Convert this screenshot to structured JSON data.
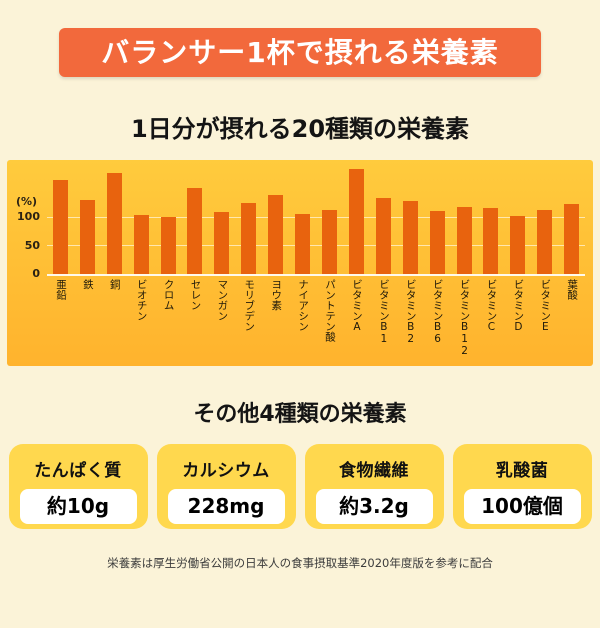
{
  "banner": {
    "title": "バランサー1杯で摂れる栄養素"
  },
  "main_chart": {
    "heading": "1日分が摂れる20種類の栄養素"
  },
  "chart_data": {
    "type": "bar",
    "title": "1日分が摂れる20種類の栄養素",
    "unit_label": "(%)",
    "ylabel": "%",
    "yticks": [
      "100",
      "50",
      "0"
    ],
    "ylim": [
      0,
      200
    ],
    "grid": "horizontal lines at 0, 50, 100",
    "legend": "none",
    "bar_color": "#E8630E",
    "plot_background": "#FFC437",
    "categories": [
      "亜鉛",
      "鉄",
      "銅",
      "ビオチン",
      "クロム",
      "セレン",
      "マンガン",
      "モリブデン",
      "ヨウ素",
      "ナイアシン",
      "パントテン酸",
      "ビタミンA",
      "ビタミンB1",
      "ビタミンB2",
      "ビタミンB6",
      "ビタミンB12",
      "ビタミンC",
      "ビタミンD",
      "ビタミンE",
      "葉酸"
    ],
    "values": [
      165,
      130,
      178,
      103,
      100,
      150,
      108,
      125,
      138,
      105,
      113,
      185,
      133,
      128,
      110,
      118,
      115,
      102,
      112,
      123
    ]
  },
  "other_nutrients": {
    "heading": "その他4種類の栄養素",
    "cards": [
      {
        "label": "たんぱく質",
        "value": "約10g"
      },
      {
        "label": "カルシウム",
        "value": "228mg"
      },
      {
        "label": "食物繊維",
        "value": "約3.2g"
      },
      {
        "label": "乳酸菌",
        "value": "100億個"
      }
    ]
  },
  "footnote": "栄養素は厚生労働省公開の日本人の食事摂取基準2020年度版を参考に配合",
  "colors": {
    "banner_background": "#F2693C",
    "page_background": "#FBF3D8",
    "chart_background": "#FFC437",
    "bar_color": "#E8630E",
    "card_background": "#FFD84E"
  }
}
